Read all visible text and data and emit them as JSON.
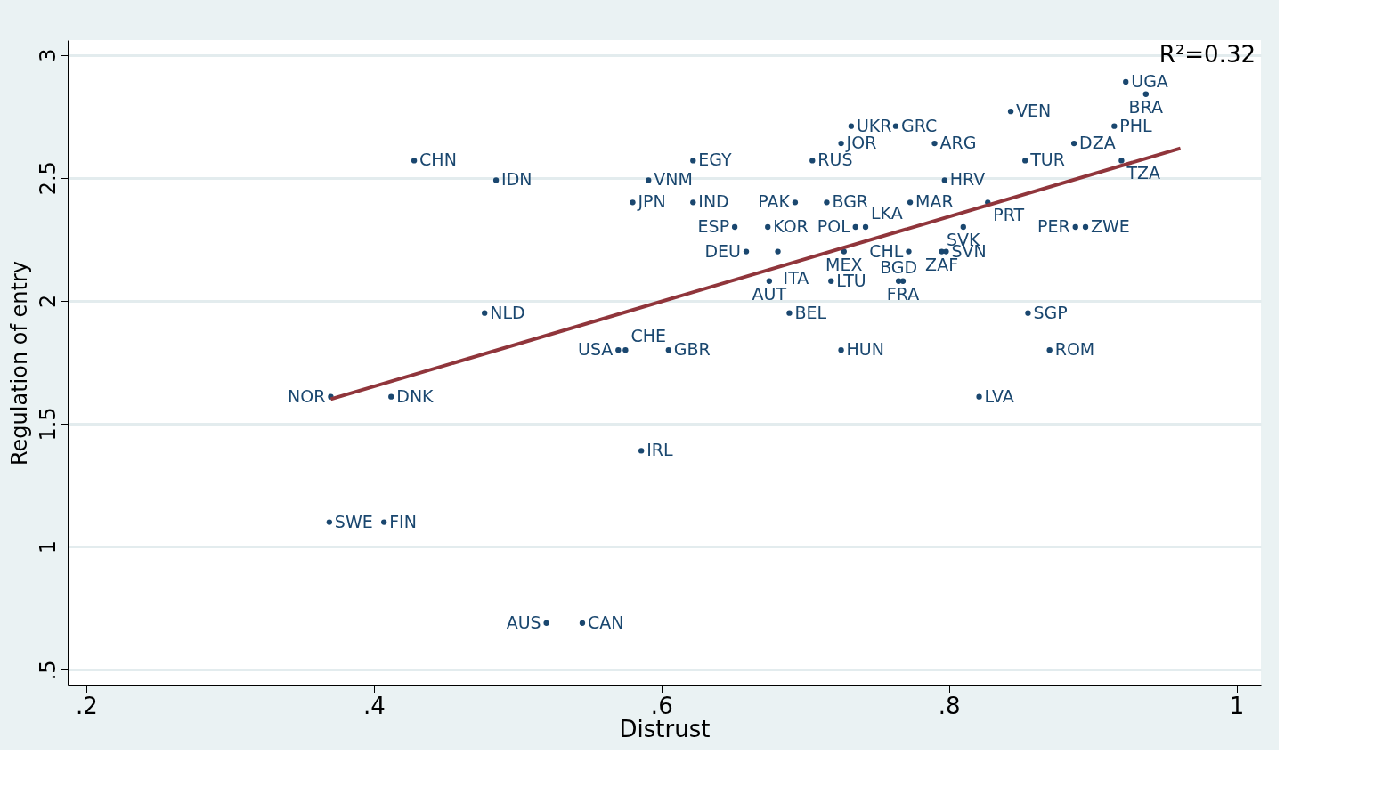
{
  "chart_data": {
    "type": "scatter",
    "xlabel": "Distrust",
    "ylabel": "Regulation of entry",
    "xlim": [
      0.187,
      1.017
    ],
    "ylim": [
      0.436,
      3.06
    ],
    "xticks": [
      {
        "value": 0.2,
        "label": ".2"
      },
      {
        "value": 0.4,
        "label": ".4"
      },
      {
        "value": 0.6,
        "label": ".6"
      },
      {
        "value": 0.8,
        "label": ".8"
      },
      {
        "value": 1,
        "label": "1"
      }
    ],
    "yticks": [
      {
        "value": 0.5,
        "label": ".5"
      },
      {
        "value": 1,
        "label": "1"
      },
      {
        "value": 1.5,
        "label": "1.5"
      },
      {
        "value": 2,
        "label": "2"
      },
      {
        "value": 2.5,
        "label": "2.5"
      },
      {
        "value": 3,
        "label": "3"
      }
    ],
    "grid": "y",
    "marker": "circle",
    "annotations": [
      "R²=0.32"
    ],
    "series": [
      {
        "color": "#1a476f",
        "x": [
          0.923,
          0.937,
          0.843,
          0.915,
          0.732,
          0.763,
          0.725,
          0.79,
          0.887,
          0.428,
          0.622,
          0.705,
          0.853,
          0.92,
          0.485,
          0.591,
          0.797,
          0.58,
          0.622,
          0.693,
          0.715,
          0.773,
          0.827,
          0.651,
          0.674,
          0.735,
          0.742,
          0.81,
          0.888,
          0.895,
          0.659,
          0.681,
          0.727,
          0.772,
          0.795,
          0.798,
          0.675,
          0.718,
          0.765,
          0.768,
          0.689,
          0.477,
          0.855,
          0.57,
          0.575,
          0.605,
          0.725,
          0.87,
          0.37,
          0.412,
          0.821,
          0.586,
          0.369,
          0.407,
          0.52,
          0.545
        ],
        "values": [
          2.89,
          2.84,
          2.77,
          2.71,
          2.71,
          2.71,
          2.64,
          2.64,
          2.64,
          2.57,
          2.57,
          2.57,
          2.57,
          2.57,
          2.49,
          2.49,
          2.49,
          2.4,
          2.4,
          2.4,
          2.4,
          2.4,
          2.4,
          2.3,
          2.3,
          2.3,
          2.3,
          2.3,
          2.3,
          2.3,
          2.2,
          2.2,
          2.2,
          2.2,
          2.2,
          2.2,
          2.08,
          2.08,
          2.08,
          2.08,
          1.95,
          1.95,
          1.95,
          1.8,
          1.8,
          1.8,
          1.8,
          1.8,
          1.61,
          1.61,
          1.61,
          1.39,
          1.1,
          1.1,
          0.69,
          0.69
        ],
        "value_labels": [
          "UGA",
          "BRA",
          "VEN",
          "PHL",
          "UKR",
          "GRC",
          "JOR",
          "ARG",
          "DZA",
          "CHN",
          "EGY",
          "RUS",
          "TUR",
          "TZA",
          "IDN",
          "VNM",
          "HRV",
          "JPN",
          "IND",
          "PAK",
          "BGR",
          "MAR",
          "PRT",
          "ESP",
          "KOR",
          "POL",
          "LKA",
          "SVK",
          "PER",
          "ZWE",
          "DEU",
          "ITA",
          "MEX",
          "CHL",
          "ZAF",
          "SVN",
          "AUT",
          "LTU",
          "BGD",
          "FRA",
          "BEL",
          "NLD",
          "SGP",
          "USA",
          "CHE",
          "GBR",
          "HUN",
          "ROM",
          "NOR",
          "DNK",
          "LVA",
          "IRL",
          "SWE",
          "FIN",
          "AUS",
          "CAN"
        ]
      },
      {
        "type": "line",
        "marker": "none",
        "color": "#90353b",
        "x": [
          0.37,
          0.961
        ],
        "values": [
          1.6,
          2.62
        ]
      }
    ]
  }
}
